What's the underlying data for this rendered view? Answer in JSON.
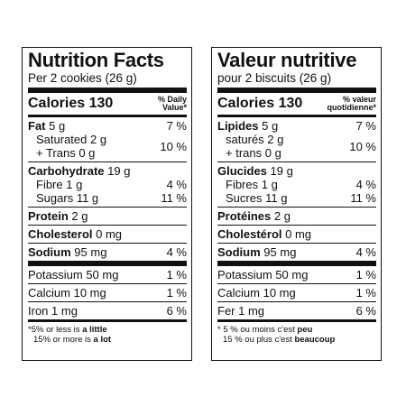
{
  "en": {
    "title": "Nutrition Facts",
    "serving": "Per 2 cookies (26 g)",
    "calories_label": "Calories",
    "calories_value": "130",
    "dv_line1": "% Daily",
    "dv_line2": "Value*",
    "fat": {
      "name": "Fat",
      "amount": "5 g",
      "dv": "7 %"
    },
    "saturated": {
      "name": "Saturated",
      "amount": "2 g"
    },
    "trans": {
      "name": "+ Trans",
      "amount": "0 g"
    },
    "sat_trans_dv": "10 %",
    "carb": {
      "name": "Carbohydrate",
      "amount": "19 g"
    },
    "fibre": {
      "name": "Fibre",
      "amount": "1 g",
      "dv": "4 %"
    },
    "sugars": {
      "name": "Sugars",
      "amount": "11 g",
      "dv": "11 %"
    },
    "protein": {
      "name": "Protein",
      "amount": "2 g"
    },
    "cholesterol": {
      "name": "Cholesterol",
      "amount": "0 mg"
    },
    "sodium": {
      "name": "Sodium",
      "amount": "95 mg",
      "dv": "4 %"
    },
    "potassium": {
      "name": "Potassium",
      "amount": "50 mg",
      "dv": "1 %"
    },
    "calcium": {
      "name": "Calcium",
      "amount": "10 mg",
      "dv": "1 %"
    },
    "iron": {
      "name": "Iron",
      "amount": "1 mg",
      "dv": "6 %"
    },
    "foot1_pre": "*5% or less is ",
    "foot1_bold": "a little",
    "foot2_pre": "15% or more is ",
    "foot2_bold": "a lot"
  },
  "fr": {
    "title": "Valeur nutritive",
    "serving": "pour 2 biscuits (26 g)",
    "calories_label": "Calories",
    "calories_value": "130",
    "dv_line1": "% valeur",
    "dv_line2": "quotidienne*",
    "fat": {
      "name": "Lipides",
      "amount": "5 g",
      "dv": "7 %"
    },
    "saturated": {
      "name": "saturés",
      "amount": "2 g"
    },
    "trans": {
      "name": "+ trans",
      "amount": "0 g"
    },
    "sat_trans_dv": "10 %",
    "carb": {
      "name": "Glucides",
      "amount": "19 g"
    },
    "fibre": {
      "name": "Fibres",
      "amount": "1 g",
      "dv": "4 %"
    },
    "sugars": {
      "name": "Sucres",
      "amount": "11 g",
      "dv": "11 %"
    },
    "protein": {
      "name": "Protéines",
      "amount": "2 g"
    },
    "cholesterol": {
      "name": "Cholestérol",
      "amount": "0 mg"
    },
    "sodium": {
      "name": "Sodium",
      "amount": "95 mg",
      "dv": "4 %"
    },
    "potassium": {
      "name": "Potassium",
      "amount": "50 mg",
      "dv": "1 %"
    },
    "calcium": {
      "name": "Calcium",
      "amount": "10 mg",
      "dv": "1 %"
    },
    "iron": {
      "name": "Fer",
      "amount": "1 mg",
      "dv": "6 %"
    },
    "foot1_pre": "* 5 % ou moins c'est ",
    "foot1_bold": "peu",
    "foot2_pre": "15 % ou plus c'est ",
    "foot2_bold": "beaucoup"
  }
}
